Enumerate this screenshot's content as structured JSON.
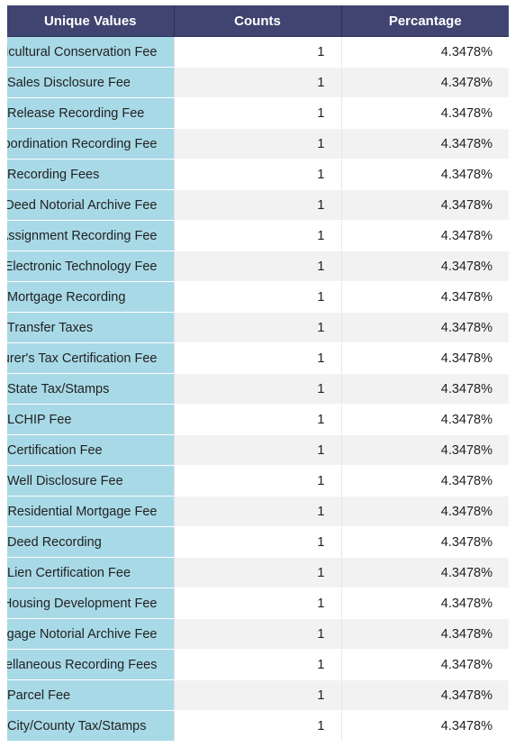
{
  "table": {
    "headers": [
      "Unique Values",
      "Counts",
      "Percantage"
    ],
    "rows": [
      {
        "name": "Agricultural Conservation Fee",
        "count": "1",
        "pct": "4.3478%"
      },
      {
        "name": "Sales Disclosure Fee",
        "count": "1",
        "pct": "4.3478%"
      },
      {
        "name": "Release Recording Fee",
        "count": "1",
        "pct": "4.3478%"
      },
      {
        "name": "Subordination Recording Fee",
        "count": "1",
        "pct": "4.3478%"
      },
      {
        "name": "Recording Fees",
        "count": "1",
        "pct": "4.3478%"
      },
      {
        "name": "Deed Notorial Archive Fee",
        "count": "1",
        "pct": "4.3478%"
      },
      {
        "name": "Assignment Recording Fee",
        "count": "1",
        "pct": "4.3478%"
      },
      {
        "name": "e Electronic Technology Fee",
        "count": "1",
        "pct": "4.3478%"
      },
      {
        "name": "Mortgage Recording",
        "count": "1",
        "pct": "4.3478%"
      },
      {
        "name": "Transfer Taxes",
        "count": "1",
        "pct": "4.3478%"
      },
      {
        "name": "surer's Tax Certification Fee",
        "count": "1",
        "pct": "4.3478%"
      },
      {
        "name": "State Tax/Stamps",
        "count": "1",
        "pct": "4.3478%"
      },
      {
        "name": "LCHIP Fee",
        "count": "1",
        "pct": "4.3478%"
      },
      {
        "name": "Certification Fee",
        "count": "1",
        "pct": "4.3478%"
      },
      {
        "name": "Well Disclosure Fee",
        "count": "1",
        "pct": "4.3478%"
      },
      {
        "name": "A Residential Mortgage Fee",
        "count": "1",
        "pct": "4.3478%"
      },
      {
        "name": "Deed Recording",
        "count": "1",
        "pct": "4.3478%"
      },
      {
        "name": "Lien Certification Fee",
        "count": "1",
        "pct": "4.3478%"
      },
      {
        "name": "Housing Development Fee",
        "count": "1",
        "pct": "4.3478%"
      },
      {
        "name": "ortgage Notorial Archive Fee",
        "count": "1",
        "pct": "4.3478%"
      },
      {
        "name": "scellaneous Recording Fees",
        "count": "1",
        "pct": "4.3478%"
      },
      {
        "name": "Parcel Fee",
        "count": "1",
        "pct": "4.3478%"
      },
      {
        "name": "City/County Tax/Stamps",
        "count": "1",
        "pct": "4.3478%"
      }
    ]
  },
  "colors": {
    "header_bg": "#3f4470",
    "name_col_bg": "#a8d9e6",
    "stripe_bg": "#f2f2f2"
  }
}
